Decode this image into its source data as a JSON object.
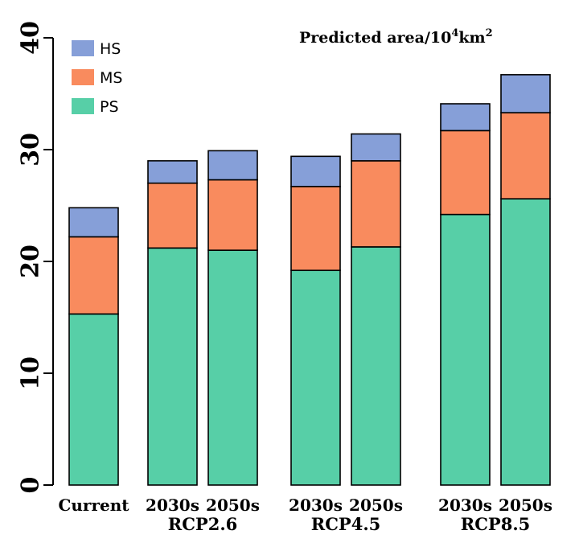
{
  "chart_data": {
    "type": "bar",
    "stacked": true,
    "title": "Predicted area/10",
    "title_superscript": "4",
    "title_unit": "km",
    "title_unit_superscript": "2",
    "ylim": [
      0,
      40
    ],
    "yticks": [
      "0",
      "10",
      "20",
      "30",
      "40"
    ],
    "ytick_values": [
      0,
      10,
      20,
      30,
      40
    ],
    "categories": [
      "Current",
      "2030s",
      "2050s",
      "2030s",
      "2050s",
      "2030s",
      "2050s"
    ],
    "groups": [
      {
        "label": "",
        "bars": [
          0
        ]
      },
      {
        "label": "RCP2.6",
        "bars": [
          1,
          2
        ]
      },
      {
        "label": "RCP4.5",
        "bars": [
          3,
          4
        ]
      },
      {
        "label": "RCP8.5",
        "bars": [
          5,
          6
        ]
      }
    ],
    "series": [
      {
        "name": "PS",
        "color": "#57cfa7",
        "values": [
          15.3,
          21.2,
          21.0,
          19.2,
          21.3,
          24.2,
          25.6
        ]
      },
      {
        "name": "MS",
        "color": "#f98b5e",
        "values": [
          6.9,
          5.8,
          6.3,
          7.5,
          7.7,
          7.5,
          7.7
        ]
      },
      {
        "name": "HS",
        "color": "#869fd8",
        "values": [
          2.6,
          2.0,
          2.6,
          2.7,
          2.4,
          2.4,
          3.4
        ]
      }
    ],
    "legend": {
      "position": "top-left",
      "entries": [
        {
          "name": "HS",
          "color": "#869fd8"
        },
        {
          "name": "MS",
          "color": "#f98b5e"
        },
        {
          "name": "PS",
          "color": "#57cfa7"
        }
      ]
    },
    "grid": false
  }
}
